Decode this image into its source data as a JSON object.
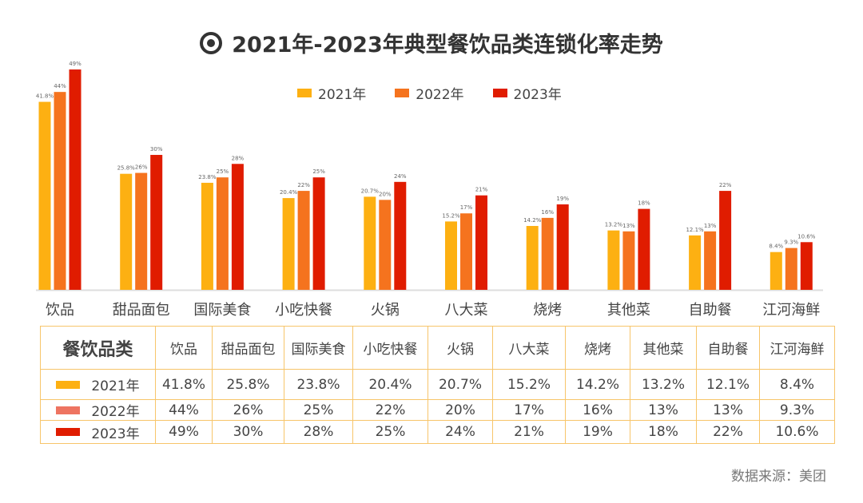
{
  "chart_data": {
    "type": "bar",
    "title": "2021年-2023年典型餐饮品类连锁化率走势",
    "categories": [
      "饮品",
      "甜品面包",
      "国际美食",
      "小吃快餐",
      "火锅",
      "八大菜",
      "烧烤",
      "其他菜",
      "自助餐",
      "江河海鲜"
    ],
    "series": [
      {
        "name": "2021年",
        "color": "#fdb012",
        "values": [
          41.8,
          25.8,
          23.8,
          20.4,
          20.7,
          15.2,
          14.2,
          13.2,
          12.1,
          8.4
        ],
        "labels": [
          "41.8%",
          "25.8%",
          "23.8%",
          "20.4%",
          "20.7%",
          "15.2%",
          "14.2%",
          "13.2%",
          "12.1%",
          "8.4%"
        ]
      },
      {
        "name": "2022年",
        "color": "#f5731e",
        "values": [
          44,
          26,
          25,
          22,
          20,
          17,
          16,
          13,
          13,
          9.3
        ],
        "labels": [
          "44%",
          "26%",
          "25%",
          "22%",
          "20%",
          "17%",
          "16%",
          "13%",
          "13%",
          "9.3%"
        ]
      },
      {
        "name": "2023年",
        "color": "#e01c00",
        "values": [
          49,
          30,
          28,
          25,
          24,
          21,
          19,
          18,
          22,
          10.6
        ],
        "labels": [
          "49%",
          "30%",
          "28%",
          "25%",
          "24%",
          "21%",
          "19%",
          "18%",
          "22%",
          "10.6%"
        ]
      }
    ],
    "legend_position": "top",
    "grid": false,
    "ylim": [
      0,
      49
    ]
  },
  "table": {
    "header": "餐饮品类",
    "row_swatch_colors": [
      "#fdb012",
      "#ee7461",
      "#e01c00"
    ]
  },
  "source": "数据来源：美团"
}
